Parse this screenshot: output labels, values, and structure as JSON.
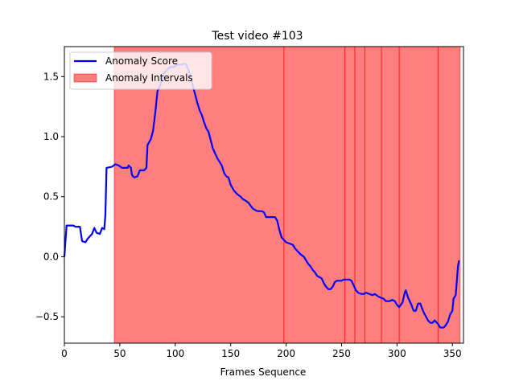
{
  "chart_data": {
    "type": "line",
    "title": "Test video #103",
    "xlabel": "Frames Sequence",
    "ylabel": "",
    "xlim": [
      0,
      360
    ],
    "ylim": [
      -0.72,
      1.75
    ],
    "xticks": [
      0,
      50,
      100,
      150,
      200,
      250,
      300,
      350
    ],
    "yticks": [
      -0.5,
      0.0,
      0.5,
      1.0,
      1.5
    ],
    "xtick_labels": [
      "0",
      "50",
      "100",
      "150",
      "200",
      "250",
      "300",
      "350"
    ],
    "ytick_labels": [
      "−0.5",
      "0.0",
      "0.5",
      "1.0",
      "1.5"
    ],
    "grid": false,
    "legend": {
      "placement": "top-left",
      "entries": [
        {
          "label": "Anomaly Score",
          "kind": "line",
          "color": "#0000ff"
        },
        {
          "label": "Anomaly Intervals",
          "kind": "patch",
          "color": "#ff0000",
          "alpha": 0.5
        }
      ]
    },
    "anomaly_intervals": [
      [
        45,
        198
      ],
      [
        198,
        253
      ],
      [
        253,
        262
      ],
      [
        262,
        271
      ],
      [
        271,
        286
      ],
      [
        286,
        302
      ],
      [
        302,
        337
      ],
      [
        337,
        357
      ]
    ],
    "series": [
      {
        "name": "Anomaly Score",
        "color": "#0000ff",
        "points": [
          [
            0,
            0.0
          ],
          [
            2,
            0.26
          ],
          [
            8,
            0.26
          ],
          [
            10,
            0.25
          ],
          [
            14,
            0.25
          ],
          [
            16,
            0.13
          ],
          [
            19,
            0.12
          ],
          [
            21,
            0.15
          ],
          [
            25,
            0.19
          ],
          [
            27,
            0.24
          ],
          [
            29,
            0.2
          ],
          [
            32,
            0.19
          ],
          [
            34,
            0.24
          ],
          [
            36,
            0.23
          ],
          [
            37,
            0.35
          ],
          [
            38,
            0.74
          ],
          [
            43,
            0.75
          ],
          [
            46,
            0.77
          ],
          [
            49,
            0.76
          ],
          [
            52,
            0.74
          ],
          [
            57,
            0.74
          ],
          [
            58,
            0.76
          ],
          [
            60,
            0.74
          ],
          [
            61,
            0.68
          ],
          [
            63,
            0.66
          ],
          [
            66,
            0.67
          ],
          [
            68,
            0.72
          ],
          [
            72,
            0.72
          ],
          [
            74,
            0.74
          ],
          [
            75,
            0.93
          ],
          [
            78,
            0.98
          ],
          [
            80,
            1.05
          ],
          [
            82,
            1.2
          ],
          [
            84,
            1.38
          ],
          [
            86,
            1.42
          ],
          [
            88,
            1.47
          ],
          [
            90,
            1.53
          ],
          [
            92,
            1.55
          ],
          [
            94,
            1.57
          ],
          [
            96,
            1.58
          ],
          [
            99,
            1.58
          ],
          [
            102,
            1.6
          ],
          [
            104,
            1.6
          ],
          [
            106,
            1.6
          ],
          [
            108,
            1.61
          ],
          [
            110,
            1.6
          ],
          [
            112,
            1.55
          ],
          [
            114,
            1.5
          ],
          [
            116,
            1.42
          ],
          [
            118,
            1.35
          ],
          [
            120,
            1.28
          ],
          [
            122,
            1.22
          ],
          [
            124,
            1.18
          ],
          [
            126,
            1.12
          ],
          [
            128,
            1.07
          ],
          [
            130,
            1.04
          ],
          [
            132,
            0.97
          ],
          [
            134,
            0.9
          ],
          [
            136,
            0.86
          ],
          [
            138,
            0.82
          ],
          [
            140,
            0.79
          ],
          [
            142,
            0.76
          ],
          [
            144,
            0.7
          ],
          [
            146,
            0.67
          ],
          [
            148,
            0.66
          ],
          [
            150,
            0.6
          ],
          [
            153,
            0.55
          ],
          [
            156,
            0.52
          ],
          [
            159,
            0.5
          ],
          [
            161,
            0.48
          ],
          [
            163,
            0.47
          ],
          [
            166,
            0.45
          ],
          [
            170,
            0.4
          ],
          [
            174,
            0.38
          ],
          [
            178,
            0.38
          ],
          [
            180,
            0.37
          ],
          [
            182,
            0.33
          ],
          [
            186,
            0.33
          ],
          [
            190,
            0.33
          ],
          [
            192,
            0.3
          ],
          [
            194,
            0.22
          ],
          [
            196,
            0.16
          ],
          [
            198,
            0.14
          ],
          [
            200,
            0.12
          ],
          [
            203,
            0.11
          ],
          [
            206,
            0.1
          ],
          [
            208,
            0.07
          ],
          [
            210,
            0.05
          ],
          [
            213,
            0.02
          ],
          [
            216,
            0.0
          ],
          [
            218,
            -0.03
          ],
          [
            220,
            -0.06
          ],
          [
            222,
            -0.08
          ],
          [
            224,
            -0.11
          ],
          [
            226,
            -0.13
          ],
          [
            228,
            -0.16
          ],
          [
            230,
            -0.17
          ],
          [
            232,
            -0.18
          ],
          [
            234,
            -0.22
          ],
          [
            236,
            -0.25
          ],
          [
            238,
            -0.27
          ],
          [
            240,
            -0.27
          ],
          [
            242,
            -0.25
          ],
          [
            244,
            -0.21
          ],
          [
            246,
            -0.2
          ],
          [
            250,
            -0.2
          ],
          [
            252,
            -0.19
          ],
          [
            254,
            -0.19
          ],
          [
            257,
            -0.19
          ],
          [
            259,
            -0.2
          ],
          [
            261,
            -0.24
          ],
          [
            263,
            -0.28
          ],
          [
            265,
            -0.3
          ],
          [
            268,
            -0.31
          ],
          [
            270,
            -0.31
          ],
          [
            272,
            -0.3
          ],
          [
            275,
            -0.31
          ],
          [
            278,
            -0.32
          ],
          [
            280,
            -0.31
          ],
          [
            283,
            -0.33
          ],
          [
            285,
            -0.34
          ],
          [
            288,
            -0.35
          ],
          [
            290,
            -0.37
          ],
          [
            293,
            -0.37
          ],
          [
            296,
            -0.36
          ],
          [
            298,
            -0.37
          ],
          [
            300,
            -0.4
          ],
          [
            302,
            -0.42
          ],
          [
            305,
            -0.38
          ],
          [
            307,
            -0.3
          ],
          [
            308,
            -0.28
          ],
          [
            310,
            -0.34
          ],
          [
            313,
            -0.4
          ],
          [
            315,
            -0.45
          ],
          [
            317,
            -0.45
          ],
          [
            319,
            -0.39
          ],
          [
            321,
            -0.39
          ],
          [
            323,
            -0.44
          ],
          [
            325,
            -0.48
          ],
          [
            328,
            -0.53
          ],
          [
            330,
            -0.55
          ],
          [
            332,
            -0.55
          ],
          [
            334,
            -0.53
          ],
          [
            337,
            -0.56
          ],
          [
            339,
            -0.59
          ],
          [
            342,
            -0.59
          ],
          [
            344,
            -0.57
          ],
          [
            346,
            -0.54
          ],
          [
            348,
            -0.48
          ],
          [
            350,
            -0.45
          ],
          [
            351,
            -0.35
          ],
          [
            353,
            -0.32
          ],
          [
            354,
            -0.2
          ],
          [
            355,
            -0.08
          ],
          [
            356,
            -0.03
          ]
        ]
      }
    ]
  }
}
